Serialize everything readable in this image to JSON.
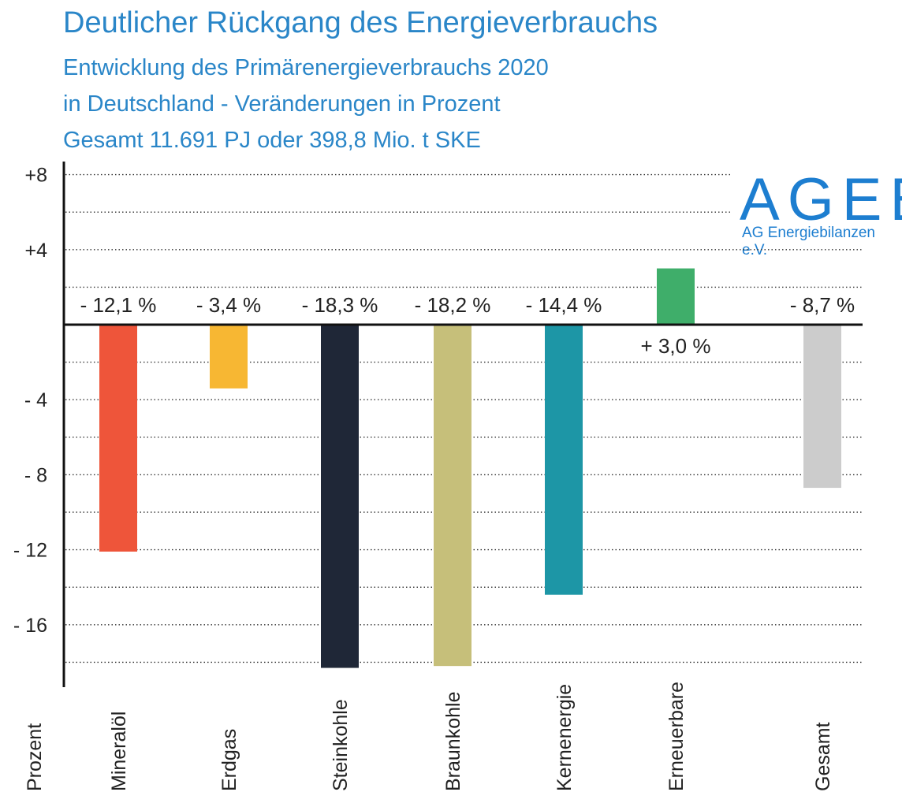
{
  "header": {
    "title": "Deutlicher Rückgang des Energieverbrauchs",
    "subtitle_lines": [
      "Entwicklung des Primärenergieverbrauchs 2020",
      "in Deutschland - Veränderungen in Prozent",
      "Gesamt 11.691 PJ oder 398,8 Mio. t SKE"
    ]
  },
  "logo": {
    "name": "AGEB",
    "tagline": "AG Energiebilanzen e.V."
  },
  "chart_data": {
    "type": "bar",
    "ylabel": "Prozent",
    "ylim": [
      -19,
      9
    ],
    "grid": true,
    "ytick_values": [
      8,
      4,
      -4,
      -8,
      -12,
      -16
    ],
    "ytick_labels": [
      "+8",
      "+4",
      "- 4",
      "- 8",
      "- 12",
      "- 16"
    ],
    "categories": [
      "Mineralöl",
      "Erdgas",
      "Steinkohle",
      "Braunkohle",
      "Kernenergie",
      "Erneuerbare",
      "Gesamt"
    ],
    "values": [
      -12.1,
      -3.4,
      -18.3,
      -18.2,
      -14.4,
      3.0,
      -8.7
    ],
    "value_labels": [
      "- 12,1 %",
      "- 3,4 %",
      "- 18,3 %",
      "- 18,2 %",
      "- 14,4 %",
      "+ 3,0 %",
      "- 8,7 %"
    ],
    "colors": [
      "#ee553a",
      "#f7b733",
      "#1f2737",
      "#c6bf7a",
      "#1d96a6",
      "#3fae6a",
      "#cccccc"
    ]
  }
}
